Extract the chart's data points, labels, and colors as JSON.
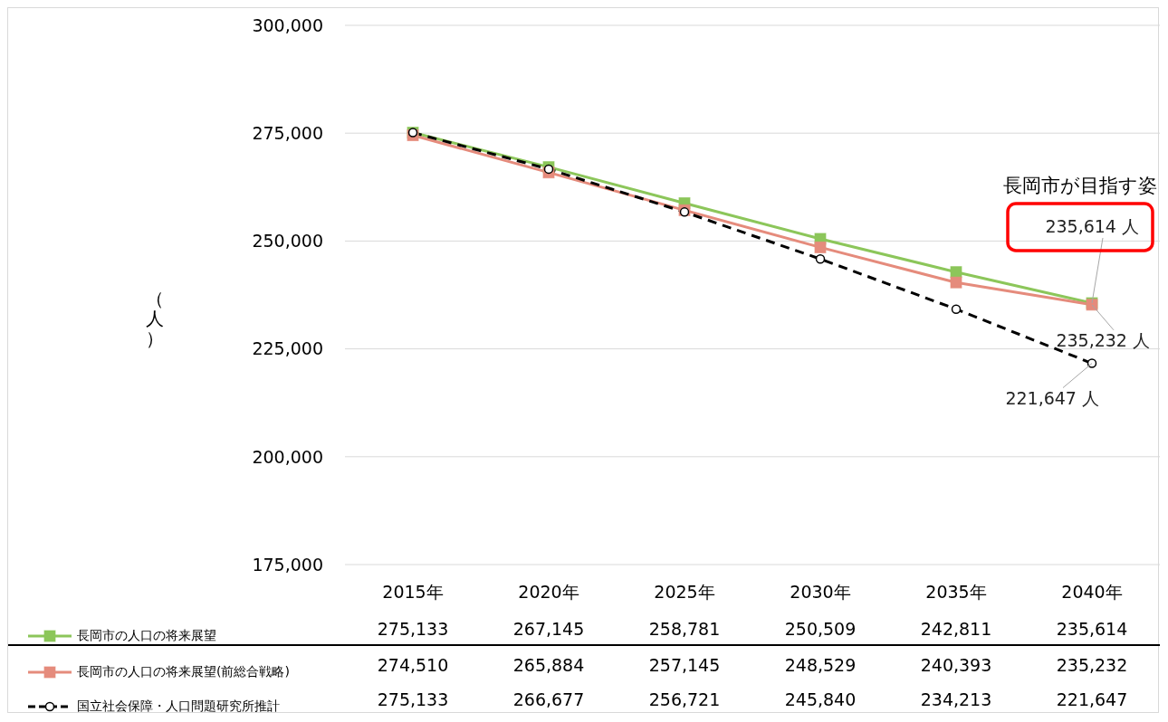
{
  "chart_data": {
    "type": "line",
    "ylabel": "（人）",
    "categories": [
      "2015年",
      "2020年",
      "2025年",
      "2030年",
      "2035年",
      "2040年"
    ],
    "series": [
      {
        "name": "長岡市の人口の将来展望",
        "color": "#8cc65a",
        "marker": "square",
        "line_style": "solid",
        "values": [
          275133,
          267145,
          258781,
          250509,
          242811,
          235614
        ],
        "value_labels": [
          "275,133",
          "267,145",
          "258,781",
          "250,509",
          "242,811",
          "235,614"
        ]
      },
      {
        "name": "長岡市の人口の将来展望(前総合戦略)",
        "color": "#e58b7c",
        "marker": "square",
        "line_style": "solid",
        "values": [
          274510,
          265884,
          257145,
          248529,
          240393,
          235232
        ],
        "value_labels": [
          "274,510",
          "265,884",
          "257,145",
          "248,529",
          "240,393",
          "235,232"
        ]
      },
      {
        "name": "国立社会保障・人口問題研究所推計",
        "color": "#000000",
        "marker": "circle",
        "line_style": "dashed",
        "values": [
          275133,
          266677,
          256721,
          245840,
          234213,
          221647
        ],
        "value_labels": [
          "275,133",
          "266,677",
          "256,721",
          "245,840",
          "234,213",
          "221,647"
        ]
      }
    ],
    "ylim": [
      175000,
      300000
    ],
    "yticks": [
      {
        "value": 175000,
        "label": "175,000"
      },
      {
        "value": 200000,
        "label": "200,000"
      },
      {
        "value": 225000,
        "label": "225,000"
      },
      {
        "value": 250000,
        "label": "250,000"
      },
      {
        "value": 275000,
        "label": "275,000"
      },
      {
        "value": 300000,
        "label": "300,000"
      }
    ],
    "grid": "y",
    "legend": "bottom",
    "annotations": [
      "長岡市が目指す姿",
      {
        "text": "235,614 人",
        "x": "2040年",
        "y": 235614
      },
      {
        "text": "235,232 人",
        "x": "2040年",
        "y": 235232
      },
      {
        "text": "221,647 人",
        "x": "2040年",
        "y": 221647
      }
    ]
  }
}
